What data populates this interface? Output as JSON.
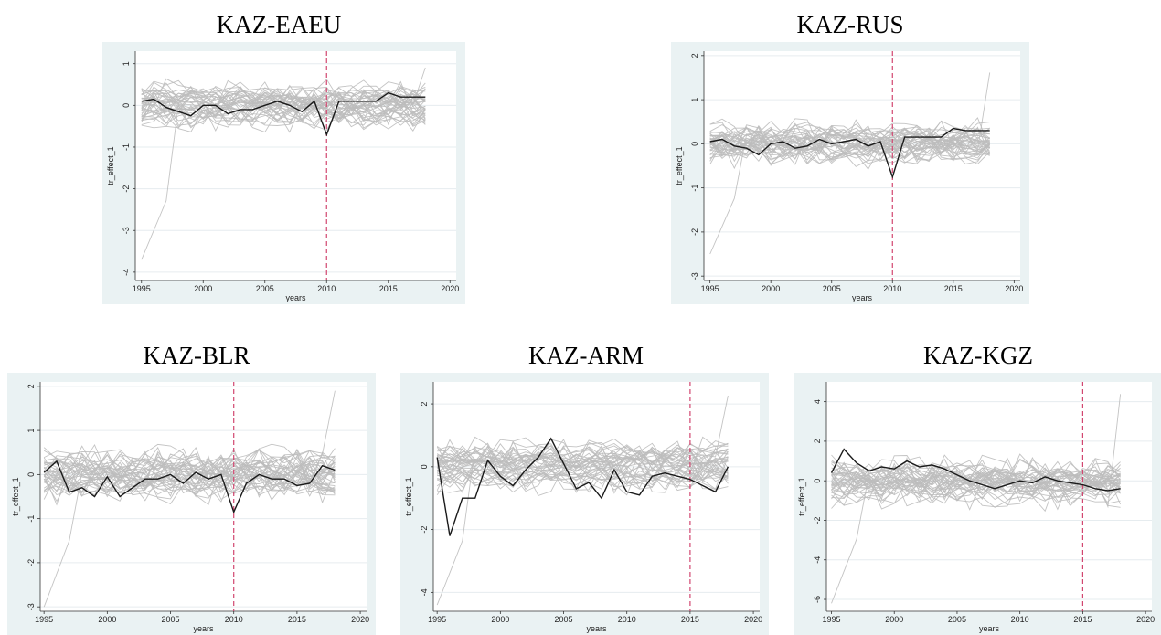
{
  "chart_data": [
    {
      "type": "line",
      "title": "KAZ-EAEU",
      "xlabel": "years",
      "ylabel": "tr_effect_1",
      "xlim": [
        1994.5,
        2020.5
      ],
      "ylim": [
        -4.2,
        1.3
      ],
      "xticks": [
        1995,
        2000,
        2005,
        2010,
        2015,
        2020
      ],
      "yticks": [
        1,
        0,
        -1,
        -2,
        -3,
        -4
      ],
      "grid": true,
      "vline": 2010,
      "treated_series": {
        "x": [
          1995,
          1996,
          1997,
          1998,
          1999,
          2000,
          2001,
          2002,
          2003,
          2004,
          2005,
          2006,
          2007,
          2008,
          2009,
          2010,
          2011,
          2012,
          2013,
          2014,
          2015,
          2016,
          2017,
          2018
        ],
        "y": [
          0.1,
          0.15,
          -0.05,
          -0.15,
          -0.25,
          0.0,
          0.0,
          -0.2,
          -0.1,
          -0.1,
          0.0,
          0.1,
          0.0,
          -0.15,
          0.1,
          -0.7,
          0.1,
          0.1,
          0.1,
          0.1,
          0.3,
          0.2,
          0.2,
          0.2
        ]
      },
      "placebo_series_count": 40,
      "placebo_y_range": [
        -3.7,
        1.0
      ]
    },
    {
      "type": "line",
      "title": "KAZ-RUS",
      "xlabel": "years",
      "ylabel": "tr_effect_1",
      "xlim": [
        1994.5,
        2020.5
      ],
      "ylim": [
        -3.1,
        2.1
      ],
      "xticks": [
        1995,
        2000,
        2005,
        2010,
        2015,
        2020
      ],
      "yticks": [
        2,
        1,
        0,
        -1,
        -2,
        -3
      ],
      "grid": true,
      "vline": 2010,
      "treated_series": {
        "x": [
          1995,
          1996,
          1997,
          1998,
          1999,
          2000,
          2001,
          2002,
          2003,
          2004,
          2005,
          2006,
          2007,
          2008,
          2009,
          2010,
          2011,
          2012,
          2013,
          2014,
          2015,
          2016,
          2017,
          2018
        ],
        "y": [
          0.05,
          0.1,
          -0.05,
          -0.1,
          -0.25,
          0.0,
          0.05,
          -0.1,
          -0.05,
          0.1,
          0.0,
          0.05,
          0.1,
          -0.05,
          0.05,
          -0.75,
          0.15,
          0.15,
          0.15,
          0.15,
          0.35,
          0.3,
          0.3,
          0.3
        ]
      },
      "placebo_series_count": 40,
      "placebo_y_range": [
        -2.5,
        1.7
      ]
    },
    {
      "type": "line",
      "title": "KAZ-BLR",
      "xlabel": "years",
      "ylabel": "tr_effect_1",
      "xlim": [
        1994.7,
        2020.5
      ],
      "ylim": [
        -3.1,
        2.1
      ],
      "xticks": [
        1995,
        2000,
        2005,
        2010,
        2015,
        2020
      ],
      "yticks": [
        2,
        1,
        0,
        -1,
        -2,
        -3
      ],
      "grid": true,
      "vline": 2010,
      "treated_series": {
        "x": [
          1995,
          1996,
          1997,
          1998,
          1999,
          2000,
          2001,
          2002,
          2003,
          2004,
          2005,
          2006,
          2007,
          2008,
          2009,
          2010,
          2011,
          2012,
          2013,
          2014,
          2015,
          2016,
          2017,
          2018
        ],
        "y": [
          0.05,
          0.3,
          -0.4,
          -0.3,
          -0.5,
          -0.05,
          -0.5,
          -0.3,
          -0.1,
          -0.1,
          0.0,
          -0.2,
          0.05,
          -0.1,
          0.0,
          -0.85,
          -0.2,
          0.0,
          -0.1,
          -0.1,
          -0.25,
          -0.2,
          0.2,
          0.1
        ]
      },
      "placebo_series_count": 40,
      "placebo_y_range": [
        -3.0,
        2.0
      ]
    },
    {
      "type": "line",
      "title": "KAZ-ARM",
      "xlabel": "years",
      "ylabel": "tr_effect_1",
      "xlim": [
        1994.7,
        2020.5
      ],
      "ylim": [
        -4.6,
        2.7
      ],
      "xticks": [
        1995,
        2000,
        2005,
        2010,
        2015,
        2020
      ],
      "yticks": [
        2,
        0,
        -2,
        -4
      ],
      "grid": true,
      "vline": 2015,
      "treated_series": {
        "x": [
          1995,
          1996,
          1997,
          1998,
          1999,
          2000,
          2001,
          2002,
          2003,
          2004,
          2005,
          2006,
          2007,
          2008,
          2009,
          2010,
          2011,
          2012,
          2013,
          2014,
          2015,
          2016,
          2017,
          2018
        ],
        "y": [
          0.3,
          -2.2,
          -1.0,
          -1.0,
          0.2,
          -0.3,
          -0.6,
          -0.1,
          0.3,
          0.9,
          0.1,
          -0.7,
          -0.5,
          -1.0,
          -0.1,
          -0.8,
          -0.9,
          -0.3,
          -0.2,
          -0.3,
          -0.4,
          -0.6,
          -0.8,
          0.0
        ]
      },
      "placebo_series_count": 40,
      "placebo_y_range": [
        -4.4,
        2.4
      ]
    },
    {
      "type": "line",
      "title": "KAZ-KGZ",
      "xlabel": "years",
      "ylabel": "tr_effect_1",
      "xlim": [
        1994.6,
        2020.5
      ],
      "ylim": [
        -6.6,
        5.0
      ],
      "xticks": [
        1995,
        2000,
        2005,
        2010,
        2015,
        2020
      ],
      "yticks": [
        4,
        2,
        0,
        -2,
        -4,
        -6
      ],
      "grid": true,
      "vline": 2015,
      "treated_series": {
        "x": [
          1995,
          1996,
          1997,
          1998,
          1999,
          2000,
          2001,
          2002,
          2003,
          2004,
          2005,
          2006,
          2007,
          2008,
          2009,
          2010,
          2011,
          2012,
          2013,
          2014,
          2015,
          2016,
          2017,
          2018
        ],
        "y": [
          0.4,
          1.6,
          0.9,
          0.5,
          0.7,
          0.6,
          1.0,
          0.7,
          0.8,
          0.6,
          0.3,
          0.0,
          -0.2,
          -0.4,
          -0.2,
          0.0,
          -0.1,
          0.2,
          0.0,
          -0.1,
          -0.2,
          -0.4,
          -0.5,
          -0.4
        ]
      },
      "placebo_series_count": 40,
      "placebo_y_range": [
        -6.2,
        4.6
      ]
    }
  ],
  "colors": {
    "panel_bg": "#eaf2f3",
    "plot_bg": "#ffffff",
    "grid": "#e6ecef",
    "placebo": "#bdbdbd",
    "treated": "#1a1a1a",
    "vline": "#d24670"
  }
}
